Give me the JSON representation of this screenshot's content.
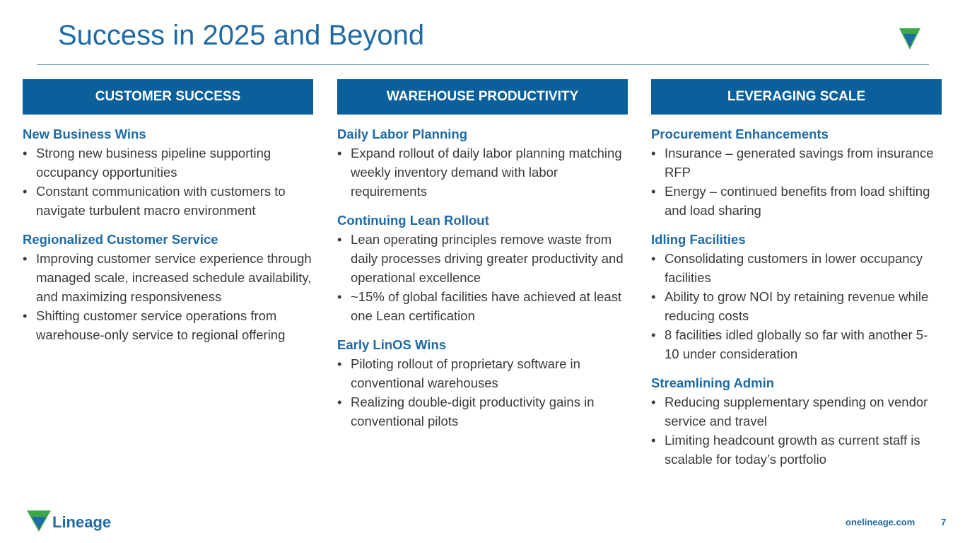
{
  "title": "Success in 2025 and Beyond",
  "columns": [
    {
      "header": "CUSTOMER SUCCESS",
      "sections": [
        {
          "heading": "New Business Wins",
          "bullets": [
            "Strong new business pipeline supporting occupancy opportunities",
            "Constant communication with customers to navigate turbulent macro environment"
          ]
        },
        {
          "heading": "Regionalized Customer Service",
          "bullets": [
            "Improving customer service experience through managed scale, increased schedule availability, and maximizing responsiveness",
            "Shifting customer service operations from warehouse-only service to regional offering"
          ]
        }
      ]
    },
    {
      "header": "WAREHOUSE PRODUCTIVITY",
      "sections": [
        {
          "heading": "Daily Labor Planning",
          "bullets": [
            "Expand rollout of daily labor planning matching weekly inventory demand with labor requirements"
          ]
        },
        {
          "heading": "Continuing Lean Rollout",
          "bullets": [
            "Lean operating principles remove waste from daily processes driving greater productivity and operational excellence",
            "~15% of global facilities have achieved at least one Lean certification"
          ]
        },
        {
          "heading": "Early LinOS Wins",
          "bullets": [
            "Piloting rollout of proprietary software in conventional warehouses",
            "Realizing double-digit productivity gains in conventional pilots"
          ]
        }
      ]
    },
    {
      "header": "LEVERAGING SCALE",
      "sections": [
        {
          "heading": "Procurement Enhancements",
          "bullets": [
            "Insurance – generated savings from insurance RFP",
            "Energy – continued benefits from load shifting and load sharing"
          ]
        },
        {
          "heading": "Idling Facilities",
          "bullets": [
            "Consolidating customers in lower occupancy facilities",
            "Ability to grow NOI by retaining revenue while reducing costs",
            "8 facilities idled globally so far with another 5-10 under consideration"
          ]
        },
        {
          "heading": "Streamlining Admin",
          "bullets": [
            "Reducing supplementary spending on vendor service and travel",
            "Limiting headcount growth as current staff is scalable for today’s portfolio"
          ]
        }
      ]
    }
  ],
  "footer": {
    "logo_text": "Lineage",
    "url": "onelineage.com",
    "page": "7"
  }
}
